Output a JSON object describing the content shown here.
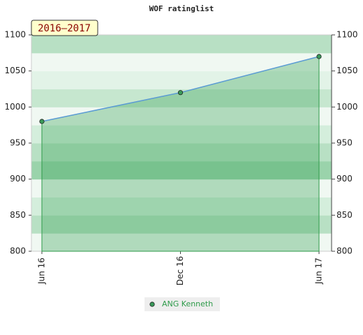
{
  "chart_data": {
    "type": "line",
    "title": "WOF ratinglist",
    "annotation": "2016–2017",
    "categories": [
      "Jun 16",
      "Dec 16",
      "Jun 17"
    ],
    "series": [
      {
        "name": "ANG Kenneth",
        "color": "#5b9bd5",
        "marker_color": "#3a9a5a",
        "values": [
          980,
          1020,
          1070
        ]
      }
    ],
    "ylim": [
      800,
      1100
    ],
    "yticks": [
      800,
      850,
      900,
      950,
      1000,
      1050,
      1100
    ],
    "y2lim": [
      800,
      1100
    ],
    "y2ticks": [
      800,
      850,
      900,
      950,
      1000,
      1050,
      1100
    ]
  }
}
